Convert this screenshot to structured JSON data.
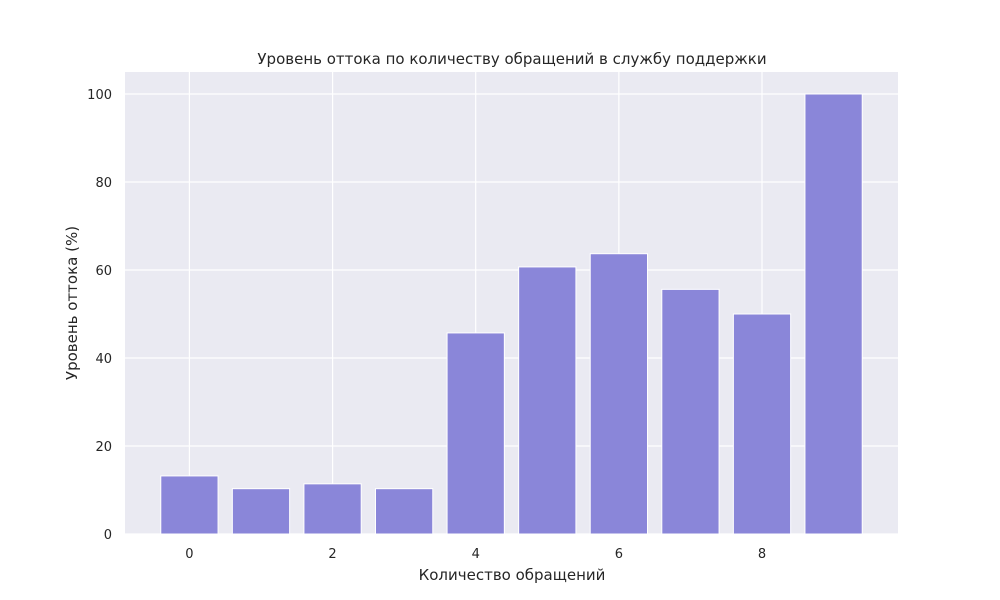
{
  "chart_data": {
    "type": "bar",
    "title": "Уровень оттока по количеству обращений в службу поддержки",
    "xlabel": "Количество обращений",
    "ylabel": "Уровень оттока (%)",
    "x": [
      0,
      1,
      2,
      3,
      4,
      5,
      6,
      7,
      8,
      9
    ],
    "values": [
      13.2,
      10.3,
      11.4,
      10.3,
      45.7,
      60.7,
      63.7,
      55.6,
      50.0,
      100.0
    ],
    "xlim": [
      -0.9,
      9.9
    ],
    "ylim": [
      0,
      105
    ],
    "xticks": [
      0,
      2,
      4,
      6,
      8
    ],
    "yticks": [
      0,
      20,
      40,
      60,
      80,
      100
    ],
    "grid": true,
    "bar_color": "#8a86d9",
    "background_color": "#eaeaf2",
    "grid_color": "#ffffff"
  }
}
